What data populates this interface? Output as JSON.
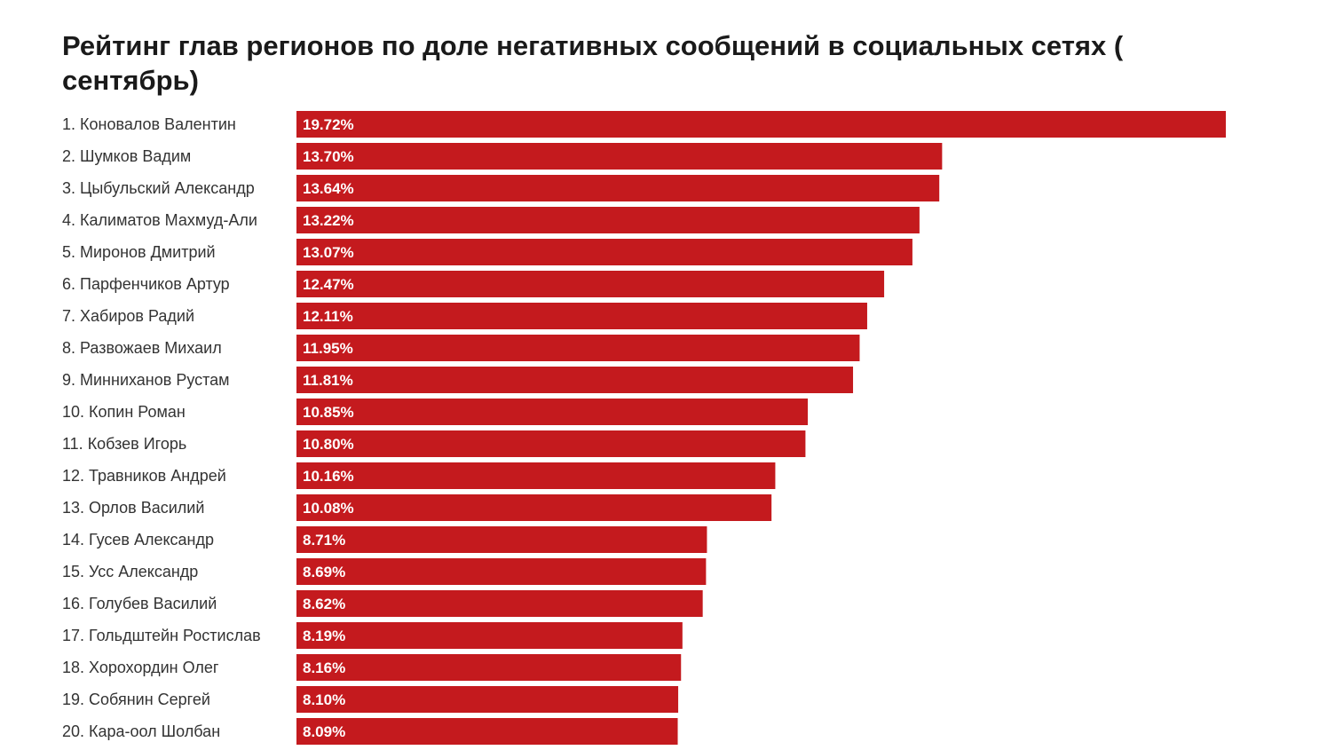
{
  "chart_data": {
    "type": "bar",
    "orientation": "horizontal",
    "title": "Рейтинг глав регионов по доле негативных сообщений в социальных сетях ( сентябрь)",
    "bar_color": "#c41a1e",
    "categories": [
      "1. Коновалов Валентин",
      "2. Шумков Вадим",
      "3. Цыбульский Александр",
      "4. Калиматов Махмуд-Али",
      "5. Миронов Дмитрий",
      "6. Парфенчиков Артур",
      "7. Хабиров Радий",
      "8. Развожаев Михаил",
      "9. Минниханов Рустам",
      "10. Копин Роман",
      "11. Кобзев Игорь",
      "12. Травников Андрей",
      "13. Орлов Василий",
      "14. Гусев Александр",
      "15. Усс Александр",
      "16. Голубев Василий",
      "17. Гольдштейн Ростислав",
      "18. Хорохордин Олег",
      "19. Собянин Сергей",
      "20. Кара-оол Шолбан"
    ],
    "values": [
      19.72,
      13.7,
      13.64,
      13.22,
      13.07,
      12.47,
      12.11,
      11.95,
      11.81,
      10.85,
      10.8,
      10.16,
      10.08,
      8.71,
      8.69,
      8.62,
      8.19,
      8.16,
      8.1,
      8.09
    ],
    "value_labels": [
      "19.72%",
      "13.70%",
      "13.64%",
      "13.22%",
      "13.07%",
      "12.47%",
      "12.11%",
      "11.95%",
      "11.81%",
      "10.85%",
      "10.80%",
      "10.16%",
      "10.08%",
      "8.71%",
      "8.69%",
      "8.62%",
      "8.19%",
      "8.16%",
      "8.10%",
      "8.09%"
    ],
    "xlim": [
      0,
      19.72
    ],
    "grid": false,
    "legend": "none"
  }
}
